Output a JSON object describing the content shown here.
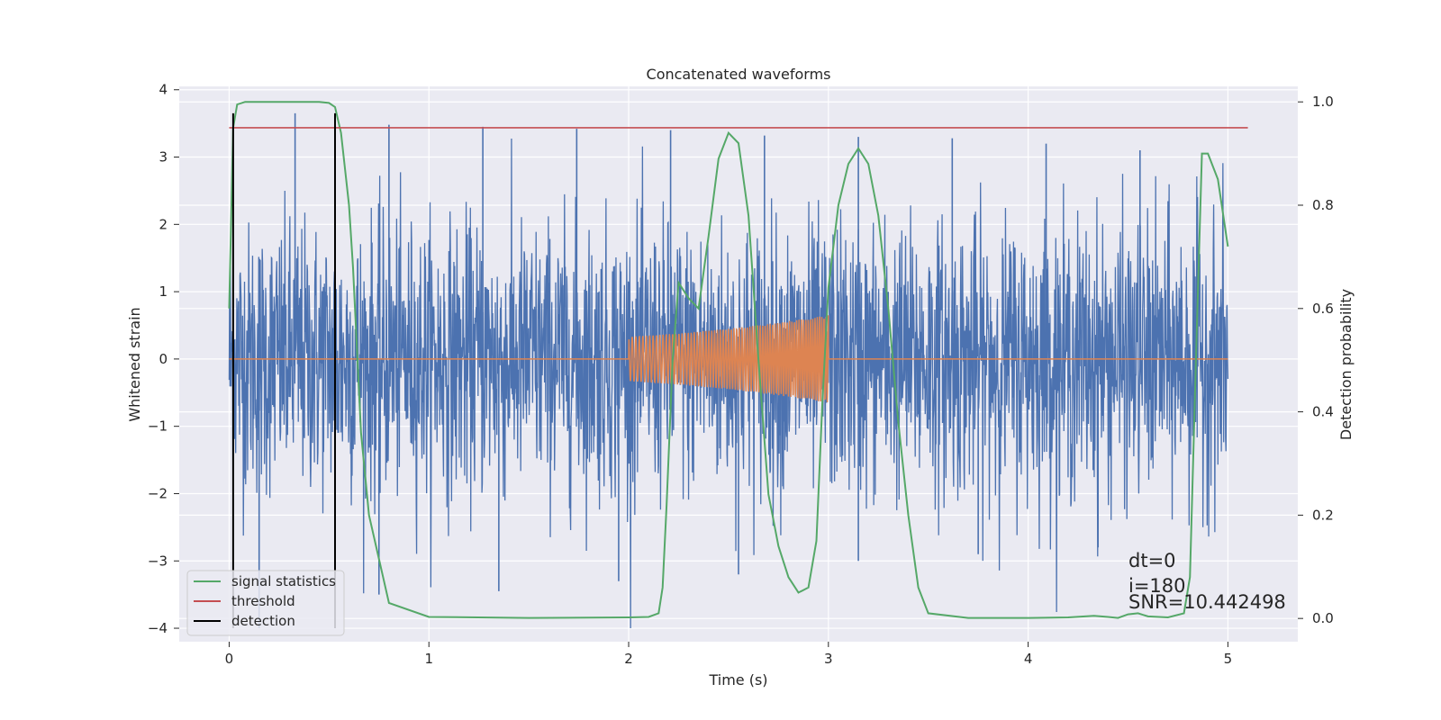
{
  "chart_data": {
    "type": "line",
    "title": "Concatenated waveforms",
    "xlabel": "Time (s)",
    "ylabel_left": "Whitened strain",
    "ylabel_right": "Detection probability",
    "xlim": [
      -0.25,
      5.35
    ],
    "ylim_left": [
      -4.2,
      4.05
    ],
    "ylim_right": [
      -0.045,
      1.03
    ],
    "xticks": [
      0,
      1,
      2,
      3,
      4,
      5
    ],
    "yticks_left": [
      -4,
      -3,
      -2,
      -1,
      0,
      1,
      2,
      3,
      4
    ],
    "yticks_right": [
      "0.0",
      "0.2",
      "0.4",
      "0.6",
      "0.8",
      "1.0"
    ],
    "grid": true,
    "legend_placement": "lower-left",
    "colors": {
      "noise": "#4c72b0",
      "signal": "#dd8452",
      "statistic": "#55a868",
      "threshold": "#c44e52",
      "detection": "#000000",
      "plot_bg": "#eaeaf2",
      "grid": "#ffffff"
    },
    "series": [
      {
        "name": "",
        "axis": "left",
        "kind": "whitened-noise",
        "x_range": [
          0,
          5
        ],
        "approx_amplitude": 1.0,
        "peak_values": [
          3.65,
          3.48,
          3.45,
          3.42,
          3.4,
          3.32,
          3.3,
          3.28,
          3.2,
          3.1
        ],
        "trough_values": [
          -4.0,
          -3.5,
          -3.45,
          -3.3,
          -3.2,
          -3.0,
          -2.9,
          -2.8
        ]
      },
      {
        "name": "",
        "axis": "left",
        "kind": "injected-chirp",
        "x": [
          0,
          2.0,
          2.0,
          2.25,
          2.5,
          2.75,
          3.0,
          3.0,
          5.0
        ],
        "envelope": [
          0,
          0,
          0.33,
          0.38,
          0.45,
          0.54,
          0.65,
          0,
          0
        ]
      },
      {
        "name": "signal statistics",
        "axis": "right",
        "x": [
          0,
          0.02,
          0.04,
          0.08,
          0.15,
          0.3,
          0.45,
          0.5,
          0.53,
          0.56,
          0.6,
          0.62,
          0.64,
          0.66,
          0.7,
          0.8,
          1.0,
          1.5,
          2.0,
          2.1,
          2.15,
          2.17,
          2.19,
          2.22,
          2.25,
          2.3,
          2.35,
          2.4,
          2.45,
          2.5,
          2.55,
          2.6,
          2.65,
          2.7,
          2.75,
          2.8,
          2.85,
          2.9,
          2.94,
          2.97,
          3.0,
          3.05,
          3.1,
          3.15,
          3.2,
          3.25,
          3.3,
          3.35,
          3.4,
          3.45,
          3.5,
          3.7,
          4.0,
          4.2,
          4.33,
          4.4,
          4.45,
          4.5,
          4.55,
          4.6,
          4.7,
          4.78,
          4.81,
          4.84,
          4.87,
          4.9,
          4.95,
          5.0
        ],
        "y": [
          0.6,
          0.95,
          0.995,
          1.0,
          1.0,
          1.0,
          1.0,
          0.998,
          0.99,
          0.94,
          0.8,
          0.68,
          0.52,
          0.36,
          0.2,
          0.03,
          0.003,
          0.001,
          0.002,
          0.003,
          0.01,
          0.06,
          0.22,
          0.5,
          0.65,
          0.62,
          0.6,
          0.74,
          0.89,
          0.94,
          0.92,
          0.78,
          0.5,
          0.24,
          0.14,
          0.08,
          0.05,
          0.06,
          0.15,
          0.42,
          0.64,
          0.8,
          0.88,
          0.91,
          0.88,
          0.78,
          0.6,
          0.38,
          0.2,
          0.06,
          0.01,
          0.001,
          0.001,
          0.002,
          0.005,
          0.003,
          0.001,
          0.008,
          0.01,
          0.004,
          0.002,
          0.01,
          0.08,
          0.5,
          0.9,
          0.9,
          0.85,
          0.72
        ]
      },
      {
        "name": "threshold",
        "axis": "right",
        "x": [
          0,
          5.1
        ],
        "y": [
          0.95,
          0.95
        ]
      },
      {
        "name": "detection",
        "axis": "left",
        "x_values": [
          0.02,
          0.53
        ],
        "y_span": [
          -4.0,
          3.65
        ]
      }
    ],
    "annotations": [
      "dt=0",
      "i=180",
      "SNR=10.442498"
    ]
  }
}
